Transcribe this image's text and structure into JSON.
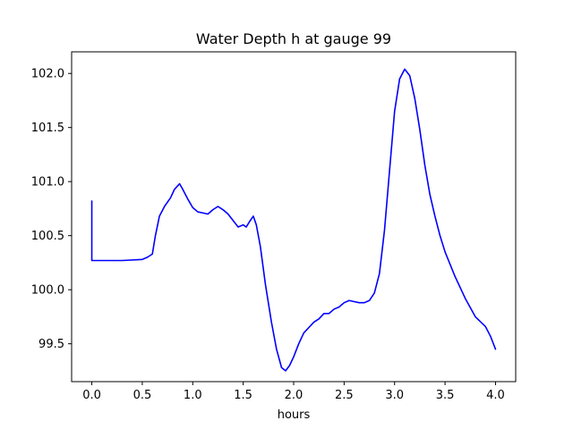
{
  "chart_data": {
    "type": "line",
    "title": "Water Depth h at gauge 99",
    "xlabel": "hours",
    "ylabel": "",
    "xlim": [
      -0.2,
      4.2
    ],
    "ylim": [
      99.15,
      102.2
    ],
    "xticks": [
      0.0,
      0.5,
      1.0,
      1.5,
      2.0,
      2.5,
      3.0,
      3.5,
      4.0
    ],
    "xtick_labels": [
      "0.0",
      "0.5",
      "1.0",
      "1.5",
      "2.0",
      "2.5",
      "3.0",
      "3.5",
      "4.0"
    ],
    "yticks": [
      99.5,
      100.0,
      100.5,
      101.0,
      101.5,
      102.0
    ],
    "ytick_labels": [
      "99.5",
      "100.0",
      "100.5",
      "101.0",
      "101.5",
      "102.0"
    ],
    "grid": false,
    "legend": "none",
    "series": [
      {
        "color": "#0000ff",
        "x": [
          0.0,
          0.0,
          0.3,
          0.5,
          0.55,
          0.6,
          0.63,
          0.67,
          0.72,
          0.78,
          0.82,
          0.87,
          0.9,
          0.95,
          1.0,
          1.05,
          1.1,
          1.15,
          1.2,
          1.25,
          1.3,
          1.35,
          1.4,
          1.45,
          1.5,
          1.53,
          1.57,
          1.6,
          1.63,
          1.67,
          1.72,
          1.78,
          1.83,
          1.88,
          1.92,
          1.96,
          2.0,
          2.05,
          2.1,
          2.15,
          2.2,
          2.25,
          2.3,
          2.35,
          2.4,
          2.45,
          2.5,
          2.55,
          2.6,
          2.65,
          2.7,
          2.75,
          2.8,
          2.85,
          2.9,
          2.95,
          3.0,
          3.05,
          3.1,
          3.15,
          3.2,
          3.25,
          3.3,
          3.35,
          3.4,
          3.45,
          3.5,
          3.6,
          3.7,
          3.8,
          3.9,
          3.95,
          4.0
        ],
        "y": [
          100.82,
          100.27,
          100.27,
          100.28,
          100.3,
          100.33,
          100.5,
          100.68,
          100.77,
          100.85,
          100.93,
          100.98,
          100.93,
          100.84,
          100.76,
          100.72,
          100.71,
          100.7,
          100.74,
          100.77,
          100.74,
          100.7,
          100.64,
          100.58,
          100.6,
          100.58,
          100.64,
          100.68,
          100.6,
          100.4,
          100.05,
          99.7,
          99.45,
          99.28,
          99.25,
          99.3,
          99.38,
          99.5,
          99.6,
          99.65,
          99.7,
          99.73,
          99.78,
          99.78,
          99.82,
          99.84,
          99.88,
          99.9,
          99.89,
          99.88,
          99.88,
          99.9,
          99.97,
          100.15,
          100.55,
          101.1,
          101.65,
          101.95,
          102.04,
          101.98,
          101.77,
          101.48,
          101.15,
          100.88,
          100.68,
          100.5,
          100.35,
          100.12,
          99.92,
          99.75,
          99.66,
          99.57,
          99.45
        ]
      }
    ]
  }
}
